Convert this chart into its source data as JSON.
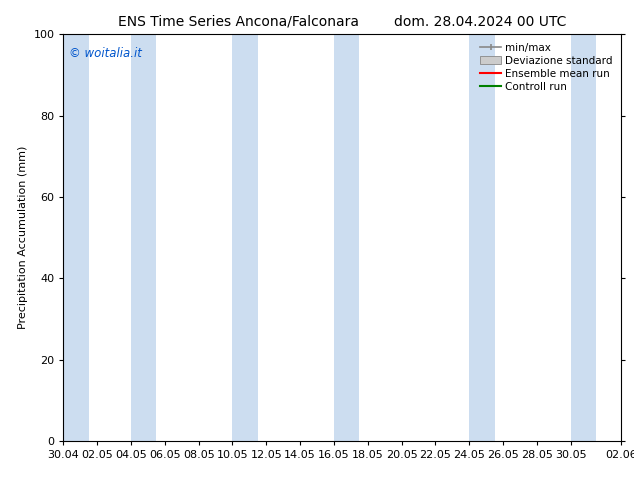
{
  "title_left": "ENS Time Series Ancona/Falconara",
  "title_right": "dom. 28.04.2024 00 UTC",
  "ylabel": "Precipitation Accumulation (mm)",
  "watermark": "© woitalia.it",
  "watermark_color": "#0055cc",
  "ylim": [
    0,
    100
  ],
  "yticks": [
    0,
    20,
    40,
    60,
    80,
    100
  ],
  "xtick_labels": [
    "30.04",
    "02.05",
    "04.05",
    "06.05",
    "08.05",
    "10.05",
    "12.05",
    "14.05",
    "16.05",
    "18.05",
    "20.05",
    "22.05",
    "24.05",
    "26.05",
    "28.05",
    "30.05",
    "02.06"
  ],
  "xtick_positions": [
    0,
    2,
    4,
    6,
    8,
    10,
    12,
    14,
    16,
    18,
    20,
    22,
    24,
    26,
    28,
    30,
    33
  ],
  "xlim": [
    0,
    33
  ],
  "shaded_bands": [
    [
      0.0,
      1.5
    ],
    [
      4.0,
      5.5
    ],
    [
      10.0,
      11.5
    ],
    [
      16.0,
      17.5
    ],
    [
      24.0,
      25.5
    ],
    [
      30.0,
      31.5
    ]
  ],
  "band_color": "#ccddf0",
  "legend_items": [
    {
      "label": "min/max",
      "color": "#888888",
      "style": "errorbar"
    },
    {
      "label": "Deviazione standard",
      "color": "#cccccc",
      "style": "box"
    },
    {
      "label": "Ensemble mean run",
      "color": "#ff0000",
      "style": "line"
    },
    {
      "label": "Controll run",
      "color": "#008000",
      "style": "line"
    }
  ],
  "background_color": "#ffffff",
  "title_fontsize": 10,
  "axis_fontsize": 8,
  "tick_fontsize": 8,
  "legend_fontsize": 7.5
}
